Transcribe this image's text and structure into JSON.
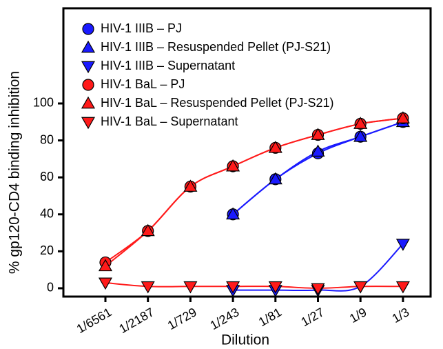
{
  "chart_data": {
    "type": "line",
    "xlabel": "Dilution",
    "ylabel": "% gp120-CD4 binding inhibition",
    "categories": [
      "1/6561",
      "1/2187",
      "1/729",
      "1/243",
      "1/81",
      "1/27",
      "1/9",
      "1/3"
    ],
    "series": [
      {
        "name": "HIV-1 IIIB – PJ",
        "color": "#1a1aff",
        "marker": "circle",
        "values": [
          null,
          null,
          null,
          40,
          59,
          73,
          82,
          90
        ]
      },
      {
        "name": "HIV-1 IIIB – Resuspended Pellet (PJ-S21)",
        "color": "#1a1aff",
        "marker": "triangle-up",
        "values": [
          null,
          null,
          null,
          40,
          59,
          74,
          82,
          90
        ]
      },
      {
        "name": "HIV-1 IIIB – Supernatant",
        "color": "#1a1aff",
        "marker": "triangle-down",
        "values": [
          null,
          null,
          null,
          -1,
          -1,
          -1,
          1,
          24
        ]
      },
      {
        "name": "HIV-1 BaL – PJ",
        "color": "#ff1a1a",
        "marker": "circle",
        "values": [
          14,
          31,
          55,
          66,
          76,
          83,
          89,
          92
        ]
      },
      {
        "name": "HIV-1 BaL – Resuspended Pellet (PJ-S21)",
        "color": "#ff1a1a",
        "marker": "triangle-up",
        "values": [
          12,
          31,
          55,
          66,
          76,
          83,
          89,
          92
        ]
      },
      {
        "name": "HIV-1 BaL – Supernatant",
        "color": "#ff1a1a",
        "marker": "triangle-down",
        "values": [
          3,
          1,
          1,
          1,
          1,
          0,
          1,
          1
        ]
      }
    ],
    "ylim": [
      -4.5,
      151.5
    ],
    "yticks": [
      0,
      20,
      40,
      60,
      80,
      100
    ],
    "legend": "upper left"
  }
}
